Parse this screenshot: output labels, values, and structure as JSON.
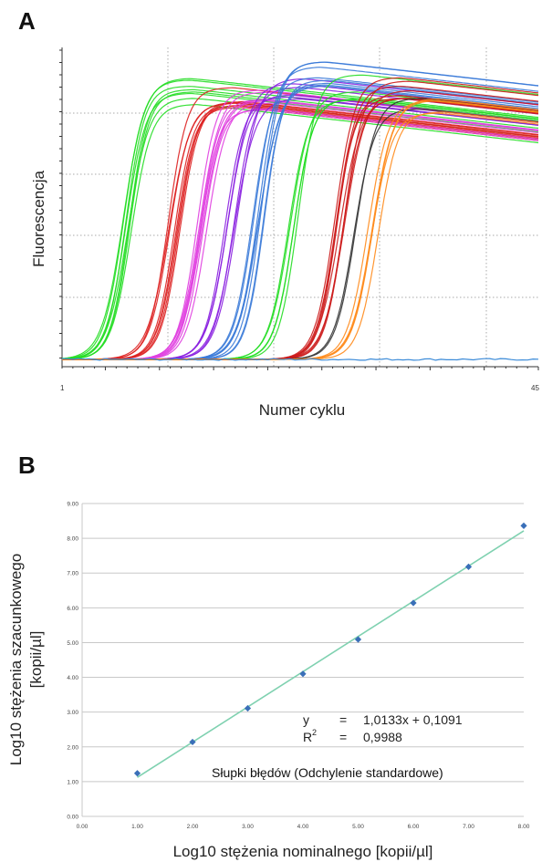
{
  "panels": {
    "a_letter": "A",
    "b_letter": "B"
  },
  "chart_data": [
    {
      "type": "line",
      "panel": "A",
      "xlabel": "Numer cyklu",
      "ylabel": "Fluorescencja",
      "x_tick_labels": [
        "1",
        "45"
      ],
      "xlim": [
        1,
        45
      ],
      "grid": "dotted",
      "series_groups": [
        {
          "color": "#22dd22",
          "midpoint_cycle": 7.2,
          "plateau": 0.88,
          "count": 8
        },
        {
          "color": "#dd2020",
          "midpoint_cycle": 11.3,
          "plateau": 0.85,
          "count": 8
        },
        {
          "color": "#e040e0",
          "midpoint_cycle": 13.8,
          "plateau": 0.86,
          "count": 8
        },
        {
          "color": "#8a20e0",
          "midpoint_cycle": 16.6,
          "plateau": 0.88,
          "count": 6
        },
        {
          "color": "#3a7ad8",
          "midpoint_cycle": 19.2,
          "plateau": 0.94,
          "count": 8
        },
        {
          "color": "#22dd22",
          "midpoint_cycle": 22.4,
          "plateau": 0.9,
          "count": 5
        },
        {
          "color": "#cc1a1a",
          "midpoint_cycle": 26.8,
          "plateau": 0.9,
          "count": 8
        },
        {
          "color": "#333333",
          "midpoint_cycle": 28.2,
          "plateau": 0.87,
          "count": 2
        },
        {
          "color": "#ff8a1a",
          "midpoint_cycle": 29.7,
          "plateau": 0.81,
          "count": 5
        }
      ],
      "baseline_series": {
        "color": "#3a8ad8",
        "level": 0.0
      }
    },
    {
      "type": "scatter",
      "panel": "B",
      "xlabel": "Log10 stężenia nominalnego [kopii/µl]",
      "ylabel_line1": "Log10 stężenia szacunkowego",
      "ylabel_line2": "[kopii/µl]",
      "xlim": [
        0,
        8
      ],
      "ylim": [
        0,
        9
      ],
      "x_ticks": [
        "0.00",
        "1.00",
        "2.00",
        "3.00",
        "4.00",
        "5.00",
        "6.00",
        "7.00",
        "8.00"
      ],
      "y_ticks": [
        "0.00",
        "1.00",
        "2.00",
        "3.00",
        "4.00",
        "5.00",
        "6.00",
        "7.00",
        "8.00",
        "9.00"
      ],
      "grid": "horizontal",
      "points": [
        {
          "x": 1,
          "y": 1.24
        },
        {
          "x": 2,
          "y": 2.14
        },
        {
          "x": 3,
          "y": 3.11
        },
        {
          "x": 4,
          "y": 4.1
        },
        {
          "x": 5,
          "y": 5.09
        },
        {
          "x": 6,
          "y": 6.14
        },
        {
          "x": 7,
          "y": 7.18
        },
        {
          "x": 8,
          "y": 8.36
        }
      ],
      "trendline": {
        "slope": 1.0133,
        "intercept": 0.1091,
        "x_from": 1,
        "x_to": 8,
        "color": "#7fd1b0"
      },
      "point_color": "#3a6fb8",
      "equation": {
        "y_symbol": "y",
        "r_symbol": "R",
        "r_superscript": "2",
        "eq_sign": "=",
        "y_value": "1,0133x + 0,1091",
        "r2_value": "0,9988"
      },
      "annotation": "Słupki błędów (Odchylenie standardowe)"
    }
  ]
}
